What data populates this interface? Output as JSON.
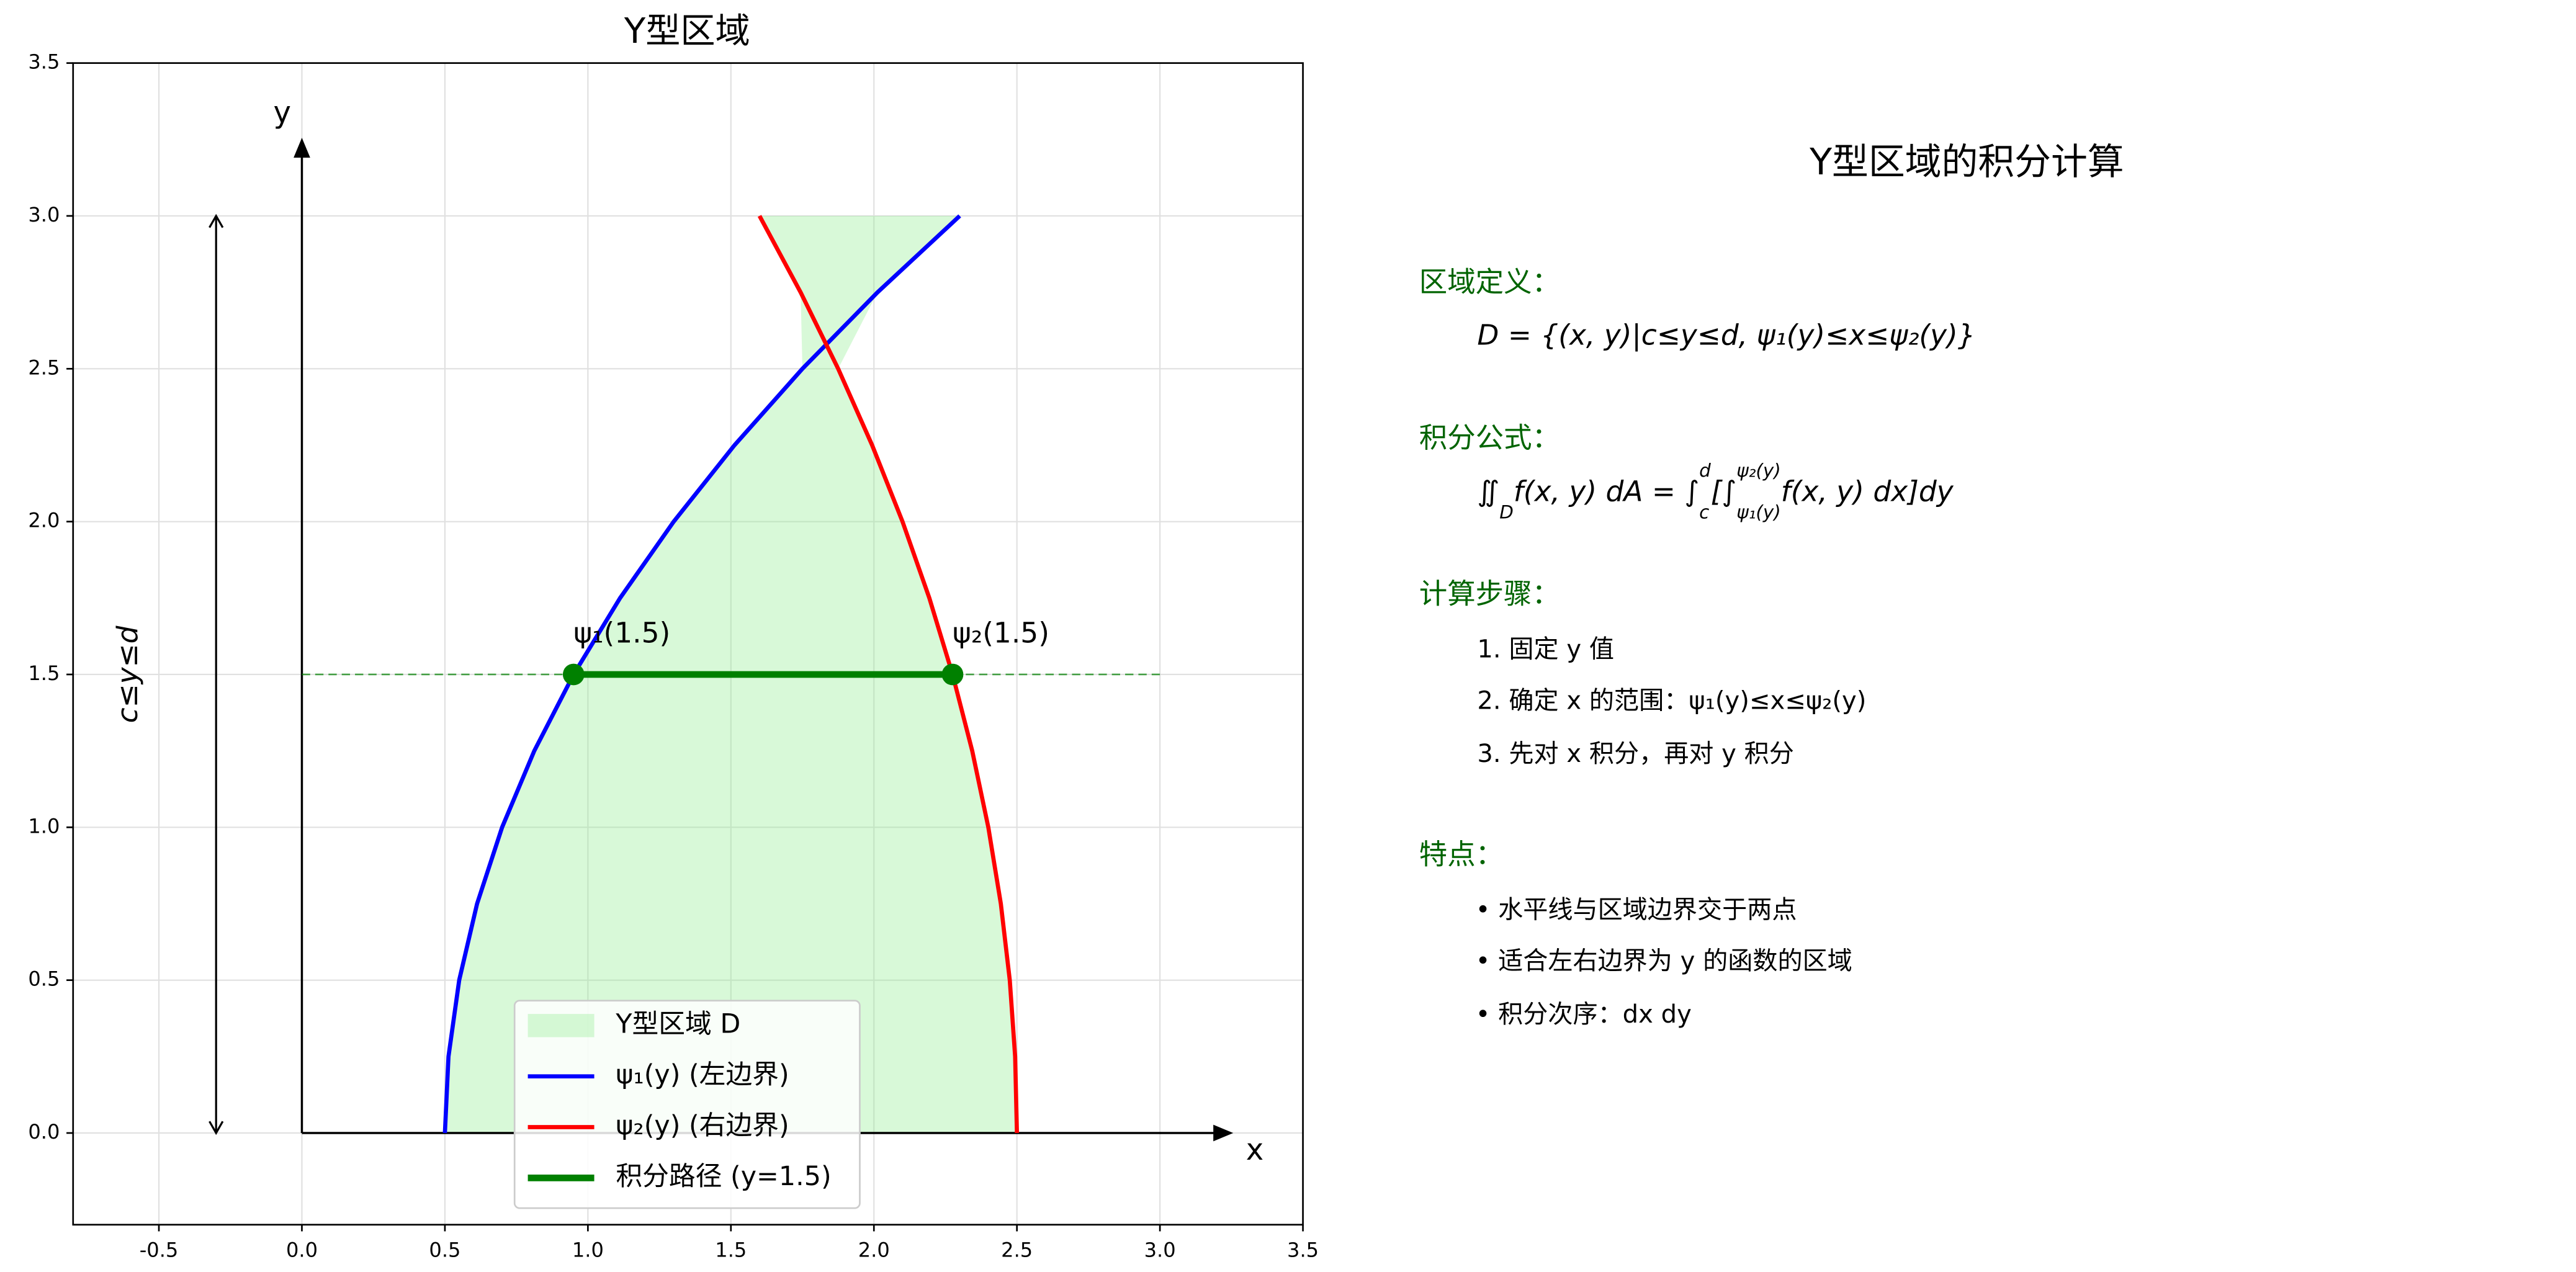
{
  "chart_data": {
    "type": "region",
    "title": "Y型区域",
    "xlim": [
      -0.8,
      3.5
    ],
    "ylim": [
      -0.3,
      3.5
    ],
    "xticks": [
      -0.5,
      {
        "value": 0,
        "label": "0.0"
      },
      0.5,
      {
        "value": 1,
        "label": "1.0"
      },
      1.5,
      {
        "value": 2,
        "label": "2.0"
      },
      2.5,
      {
        "value": 3,
        "label": "3.0"
      },
      3.5
    ],
    "yticks": [
      {
        "value": 0,
        "label": "0.0"
      },
      0.5,
      {
        "value": 1,
        "label": "1.0"
      },
      1.5,
      {
        "value": 2,
        "label": "2.0"
      },
      2.5,
      {
        "value": 3,
        "label": "3.0"
      },
      3.5
    ],
    "grid": true,
    "x_label": "x",
    "y_label": "y",
    "range_label": "c≤y≤d",
    "range_arrow": {
      "x": -0.3,
      "y": [
        0,
        3
      ]
    },
    "fill": {
      "name": "Y型区域 D",
      "color": "#90ee90"
    },
    "series": [
      {
        "name": "ψ₁(y) (左边界)",
        "color": "#0000ff",
        "y": [
          0,
          0.25,
          0.5,
          0.75,
          1,
          1.25,
          1.5,
          1.75,
          2,
          2.25,
          2.5,
          2.75,
          3
        ],
        "x": [
          0.5,
          0.5125,
          0.55,
          0.6125,
          0.7,
          0.8125,
          0.95,
          1.1125,
          1.3,
          1.5125,
          1.75,
          2.0125,
          2.3
        ]
      },
      {
        "name": "ψ₂(y) (右边界)",
        "color": "#ff0000",
        "y": [
          0,
          0.25,
          0.5,
          0.75,
          1,
          1.25,
          1.5,
          1.75,
          2,
          2.25,
          2.5,
          2.75,
          3
        ],
        "x": [
          2.5,
          2.49375,
          2.475,
          2.44375,
          2.4,
          2.34375,
          2.275,
          2.19375,
          2.1,
          1.99375,
          1.875,
          1.74375,
          1.6
        ]
      }
    ],
    "path": {
      "name": "积分路径 (y=1.5)",
      "color": "#008000",
      "y": 1.5,
      "x": [
        0.95,
        2.275
      ],
      "guide_x": [
        0,
        3
      ]
    },
    "point_labels": [
      "ψ₁(1.5)",
      "ψ₂(1.5)"
    ]
  },
  "panel": {
    "title": "Y型区域的积分计算",
    "definition_heading": "区域定义：",
    "definition": "D = {(x, y)|c≤y≤d, ψ₁(y)≤x≤ψ₂(y)}",
    "formula_heading": "积分公式：",
    "formula": [
      {
        "text": "∬"
      },
      {
        "sub": "D"
      },
      {
        "text": "f(x, y) dA = ∫"
      },
      {
        "sub": "c",
        "sup": "d"
      },
      {
        "text": "[∫"
      },
      {
        "sub": "ψ₁(y)",
        "sup": "ψ₂(y)"
      },
      {
        "text": "f(x, y) dx]dy"
      }
    ],
    "steps_heading": "计算步骤：",
    "steps": [
      "1. 固定 y 值",
      "2. 确定 x 的范围：ψ₁(y)≤x≤ψ₂(y)",
      "3. 先对 x 积分，再对 y 积分"
    ],
    "features_heading": "特点：",
    "features": [
      "• 水平线与区域边界交于两点",
      "• 适合左右边界为 y 的函数的区域",
      "• 积分次序：dx dy"
    ]
  }
}
